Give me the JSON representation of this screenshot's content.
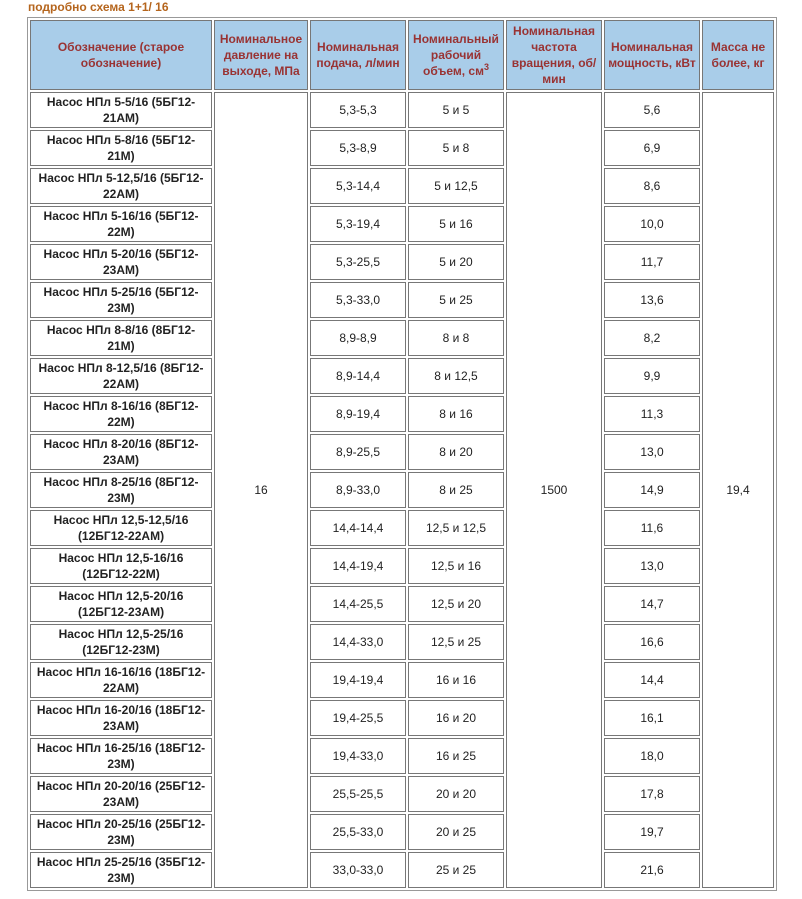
{
  "caption": "подробно схема 1+1/ 16",
  "table": {
    "headers": [
      {
        "text": "Обозначение (старое обозначение)"
      },
      {
        "text": "Номинальное давление на выходе, МПа"
      },
      {
        "text": "Номинальная подача, л/мин"
      },
      {
        "text": "Номинальный рабочий объем, см",
        "sup": "3"
      },
      {
        "text": "Номинальная частота вращения, об/мин"
      },
      {
        "text": "Номинальная мощность, кВт"
      },
      {
        "text": "Масса не более, кг"
      }
    ],
    "pressure": "16",
    "speed": "1500",
    "mass": "19,4",
    "rows": [
      [
        "Насос НПл 5-5/16 (5БГ12-21АМ)",
        "5,3-5,3",
        "5 и 5",
        "5,6"
      ],
      [
        "Насос НПл 5-8/16 (5БГ12-21М)",
        "5,3-8,9",
        "5 и 8",
        "6,9"
      ],
      [
        "Насос НПл 5-12,5/16 (5БГ12-22АМ)",
        "5,3-14,4",
        "5 и 12,5",
        "8,6"
      ],
      [
        "Насос НПл 5-16/16 (5БГ12-22М)",
        "5,3-19,4",
        "5 и 16",
        "10,0"
      ],
      [
        "Насос НПл 5-20/16 (5БГ12-23АМ)",
        "5,3-25,5",
        "5 и 20",
        "11,7"
      ],
      [
        "Насос НПл 5-25/16 (5БГ12-23М)",
        "5,3-33,0",
        "5 и 25",
        "13,6"
      ],
      [
        "Насос НПл 8-8/16 (8БГ12-21М)",
        "8,9-8,9",
        "8 и 8",
        "8,2"
      ],
      [
        "Насос НПл 8-12,5/16 (8БГ12-22АМ)",
        "8,9-14,4",
        "8 и 12,5",
        "9,9"
      ],
      [
        "Насос НПл 8-16/16 (8БГ12-22М)",
        "8,9-19,4",
        "8 и 16",
        "11,3"
      ],
      [
        "Насос НПл 8-20/16 (8БГ12-23АМ)",
        "8,9-25,5",
        "8 и 20",
        "13,0"
      ],
      [
        "Насос НПл 8-25/16 (8БГ12-23М)",
        "8,9-33,0",
        "8 и 25",
        "14,9"
      ],
      [
        "Насос НПл 12,5-12,5/16 (12БГ12-22АМ)",
        "14,4-14,4",
        "12,5 и 12,5",
        "11,6"
      ],
      [
        "Насос НПл 12,5-16/16 (12БГ12-22М)",
        "14,4-19,4",
        "12,5 и 16",
        "13,0"
      ],
      [
        "Насос НПл 12,5-20/16 (12БГ12-23АМ)",
        "14,4-25,5",
        "12,5 и 20",
        "14,7"
      ],
      [
        "Насос НПл 12,5-25/16 (12БГ12-23М)",
        "14,4-33,0",
        "12,5 и 25",
        "16,6"
      ],
      [
        "Насос НПл 16-16/16 (18БГ12-22АМ)",
        "19,4-19,4",
        "16 и 16",
        "14,4"
      ],
      [
        "Насос НПл 16-20/16 (18БГ12-23АМ)",
        "19,4-25,5",
        "16 и 20",
        "16,1"
      ],
      [
        "Насос НПл 16-25/16 (18БГ12-23М)",
        "19,4-33,0",
        "16 и 25",
        "18,0"
      ],
      [
        "Насос НПл 20-20/16 (25БГ12-23АМ)",
        "25,5-25,5",
        "20 и 20",
        "17,8"
      ],
      [
        "Насос НПл 20-25/16 (25БГ12-23М)",
        "25,5-33,0",
        "20 и 25",
        "19,7"
      ],
      [
        "Насос НПл 25-25/16 (35БГ12-23М)",
        "33,0-33,0",
        "25 и 25",
        "21,6"
      ]
    ]
  }
}
